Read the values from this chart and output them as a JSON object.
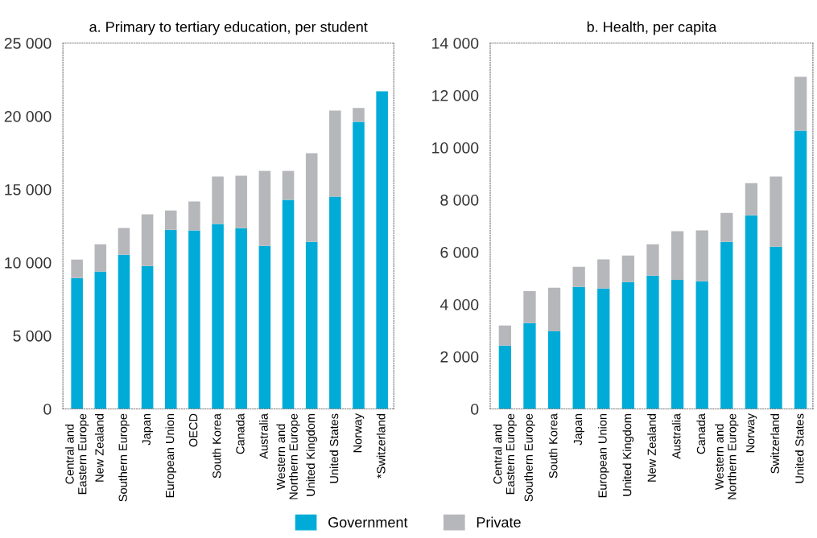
{
  "chart_data": [
    {
      "type": "bar",
      "title": "a. Primary to tertiary education, per student",
      "stacked": true,
      "categories": [
        "Central and\nEastern Europe",
        "New Zealand",
        "Southern Europe",
        "Japan",
        "European Union",
        "OECD",
        "South Korea",
        "Canada",
        "Australia",
        "Western and\nNorthern Europe",
        "United Kingdom",
        "United States",
        "Norway",
        "*Switzerland"
      ],
      "series": [
        {
          "name": "Government",
          "color": "#00acd7",
          "values": [
            8940,
            9380,
            10540,
            9770,
            12240,
            12190,
            12630,
            12350,
            11140,
            14280,
            11420,
            14500,
            19620,
            21710
          ]
        },
        {
          "name": "Private",
          "color": "#b6b7bb",
          "values": [
            1270,
            1870,
            1820,
            3520,
            1320,
            1980,
            3250,
            3580,
            5120,
            1980,
            6050,
            5890,
            940,
            0
          ]
        }
      ],
      "ylim": [
        0,
        25000
      ],
      "yticks": [
        {
          "value": 0,
          "label": "0"
        },
        {
          "value": 5000,
          "label": "5 000"
        },
        {
          "value": 10000,
          "label": "10 000"
        },
        {
          "value": 15000,
          "label": "15 000"
        },
        {
          "value": 20000,
          "label": "20 000"
        },
        {
          "value": 25000,
          "label": "25 000"
        }
      ],
      "legend": "bottom"
    },
    {
      "type": "bar",
      "title": "b. Health, per capita",
      "stacked": true,
      "categories": [
        "Central and\nEastern Europe",
        "Southern Europe",
        "South Korea",
        "Japan",
        "European Union",
        "United Kingdom",
        "New Zealand",
        "Australia",
        "Canada",
        "Western and\nNorthern Europe",
        "Norway",
        "Switzerland",
        "United States"
      ],
      "series": [
        {
          "name": "Government",
          "color": "#00acd7",
          "values": [
            2420,
            3280,
            2970,
            4670,
            4610,
            4850,
            5100,
            4940,
            4880,
            6390,
            7410,
            6210,
            10650
          ]
        },
        {
          "name": "Private",
          "color": "#b6b7bb",
          "values": [
            770,
            1230,
            1670,
            770,
            1110,
            1020,
            1200,
            1860,
            1950,
            1110,
            1230,
            2680,
            2060
          ]
        }
      ],
      "ylim": [
        0,
        14000
      ],
      "yticks": [
        {
          "value": 0,
          "label": "0"
        },
        {
          "value": 2000,
          "label": "2 000"
        },
        {
          "value": 4000,
          "label": "4 000"
        },
        {
          "value": 6000,
          "label": "6 000"
        },
        {
          "value": 8000,
          "label": "8 000"
        },
        {
          "value": 10000,
          "label": "10 000"
        },
        {
          "value": 12000,
          "label": "12 000"
        },
        {
          "value": 14000,
          "label": "14 000"
        }
      ],
      "legend": "bottom"
    }
  ]
}
